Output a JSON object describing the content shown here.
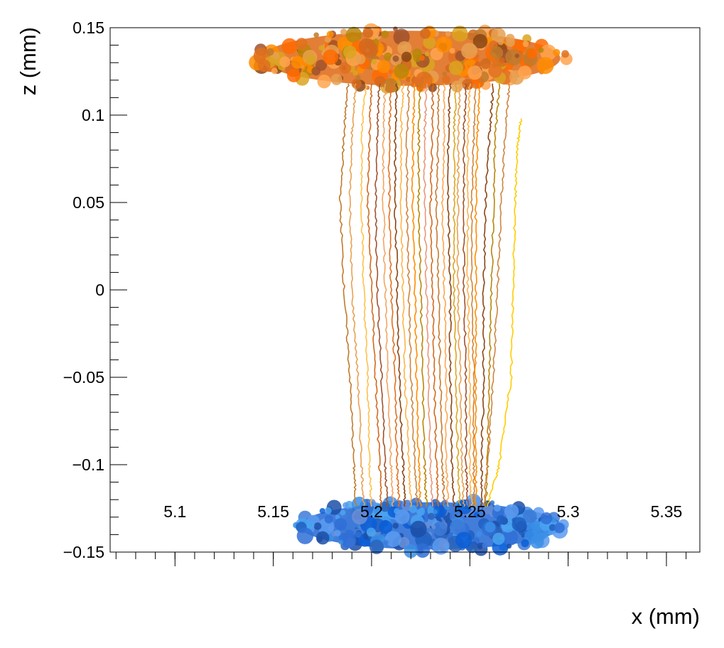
{
  "chart_data": {
    "type": "line",
    "title": "",
    "xlabel": "x (mm)",
    "ylabel": "z (mm)",
    "xlim": [
      5.067,
      5.367
    ],
    "ylim": [
      -0.15,
      0.15
    ],
    "grid": false,
    "legend": "none",
    "x_ticks": [
      {
        "value": 5.1,
        "label": "5.1"
      },
      {
        "value": 5.15,
        "label": "5.15"
      },
      {
        "value": 5.2,
        "label": "5.2"
      },
      {
        "value": 5.25,
        "label": "5.25"
      },
      {
        "value": 5.3,
        "label": "5.3"
      },
      {
        "value": 5.35,
        "label": "5.35"
      }
    ],
    "y_ticks": [
      {
        "value": 0.15,
        "label": "0.15"
      },
      {
        "value": 0.1,
        "label": "0.1"
      },
      {
        "value": 0.05,
        "label": "0.05"
      },
      {
        "value": 0,
        "label": "0"
      },
      {
        "value": -0.05,
        "label": "−0.05"
      },
      {
        "value": -0.1,
        "label": "−0.1"
      },
      {
        "value": -0.15,
        "label": "−0.15"
      }
    ],
    "series": [
      {
        "kind": "drift",
        "color": "#c07a2c",
        "x": [
          5.188,
          5.186,
          5.184,
          5.186,
          5.189,
          5.191,
          5.192
        ],
        "z": [
          0.118,
          0.09,
          0.05,
          0.0,
          -0.05,
          -0.1,
          -0.124
        ]
      },
      {
        "kind": "drift",
        "color": "#e8a050",
        "x": [
          5.192,
          5.19,
          5.189,
          5.19,
          5.193,
          5.195,
          5.196
        ],
        "z": [
          0.118,
          0.09,
          0.05,
          0.0,
          -0.05,
          -0.1,
          -0.124
        ]
      },
      {
        "kind": "drift",
        "color": "#ffc04a",
        "x": [
          5.197,
          5.195,
          5.195,
          5.196,
          5.198,
          5.199,
          5.2
        ],
        "z": [
          0.118,
          0.09,
          0.05,
          0.0,
          -0.05,
          -0.1,
          -0.124
        ]
      },
      {
        "kind": "drift",
        "color": "#d2691e",
        "x": [
          5.2,
          5.199,
          5.198,
          5.2,
          5.202,
          5.204,
          5.205
        ],
        "z": [
          0.118,
          0.09,
          0.05,
          0.0,
          -0.05,
          -0.1,
          -0.124
        ]
      },
      {
        "kind": "drift",
        "color": "#a0522d",
        "x": [
          5.204,
          5.203,
          5.202,
          5.203,
          5.205,
          5.207,
          5.208
        ],
        "z": [
          0.118,
          0.09,
          0.05,
          0.0,
          -0.05,
          -0.1,
          -0.124
        ]
      },
      {
        "kind": "drift",
        "color": "#f4a460",
        "x": [
          5.207,
          5.206,
          5.206,
          5.207,
          5.208,
          5.21,
          5.211
        ],
        "z": [
          0.118,
          0.09,
          0.05,
          0.0,
          -0.05,
          -0.1,
          -0.124
        ]
      },
      {
        "kind": "drift",
        "color": "#e07020",
        "x": [
          5.21,
          5.209,
          5.209,
          5.21,
          5.212,
          5.213,
          5.214
        ],
        "z": [
          0.118,
          0.09,
          0.05,
          0.0,
          -0.05,
          -0.1,
          -0.124
        ]
      },
      {
        "kind": "drift",
        "color": "#8b4513",
        "x": [
          5.213,
          5.212,
          5.212,
          5.213,
          5.214,
          5.216,
          5.217
        ],
        "z": [
          0.118,
          0.09,
          0.05,
          0.0,
          -0.05,
          -0.1,
          -0.124
        ]
      },
      {
        "kind": "drift",
        "color": "#ffb347",
        "x": [
          5.216,
          5.215,
          5.215,
          5.216,
          5.217,
          5.219,
          5.22
        ],
        "z": [
          0.118,
          0.09,
          0.05,
          0.0,
          -0.05,
          -0.1,
          -0.124
        ]
      },
      {
        "kind": "drift",
        "color": "#cd853f",
        "x": [
          5.219,
          5.218,
          5.218,
          5.219,
          5.22,
          5.222,
          5.223
        ],
        "z": [
          0.118,
          0.09,
          0.05,
          0.0,
          -0.05,
          -0.1,
          -0.124
        ]
      },
      {
        "kind": "drift",
        "color": "#ff8c00",
        "x": [
          5.222,
          5.221,
          5.221,
          5.222,
          5.223,
          5.224,
          5.225
        ],
        "z": [
          0.118,
          0.09,
          0.05,
          0.0,
          -0.05,
          -0.1,
          -0.124
        ]
      },
      {
        "kind": "drift",
        "color": "#b8860b",
        "x": [
          5.225,
          5.224,
          5.224,
          5.225,
          5.226,
          5.227,
          5.228
        ],
        "z": [
          0.118,
          0.09,
          0.05,
          0.0,
          -0.05,
          -0.1,
          -0.124
        ]
      },
      {
        "kind": "drift",
        "color": "#e9967a",
        "x": [
          5.228,
          5.227,
          5.227,
          5.228,
          5.229,
          5.23,
          5.231
        ],
        "z": [
          0.118,
          0.09,
          0.05,
          0.0,
          -0.05,
          -0.1,
          -0.124
        ]
      },
      {
        "kind": "drift",
        "color": "#d2691e",
        "x": [
          5.231,
          5.231,
          5.23,
          5.231,
          5.232,
          5.233,
          5.234
        ],
        "z": [
          0.118,
          0.09,
          0.05,
          0.0,
          -0.05,
          -0.1,
          -0.124
        ]
      },
      {
        "kind": "drift",
        "color": "#c67b30",
        "x": [
          5.234,
          5.234,
          5.233,
          5.234,
          5.235,
          5.236,
          5.237
        ],
        "z": [
          0.118,
          0.09,
          0.05,
          0.0,
          -0.05,
          -0.1,
          -0.124
        ]
      },
      {
        "kind": "drift",
        "color": "#ffa54f",
        "x": [
          5.237,
          5.237,
          5.236,
          5.237,
          5.238,
          5.238,
          5.239
        ],
        "z": [
          0.118,
          0.09,
          0.05,
          0.0,
          -0.05,
          -0.1,
          -0.124
        ]
      },
      {
        "kind": "drift",
        "color": "#8b4513",
        "x": [
          5.24,
          5.239,
          5.239,
          5.24,
          5.24,
          5.241,
          5.242
        ],
        "z": [
          0.118,
          0.09,
          0.05,
          0.0,
          -0.05,
          -0.1,
          -0.124
        ]
      },
      {
        "kind": "drift",
        "color": "#daa520",
        "x": [
          5.243,
          5.242,
          5.242,
          5.242,
          5.243,
          5.244,
          5.245
        ],
        "z": [
          0.118,
          0.09,
          0.05,
          0.0,
          -0.05,
          -0.1,
          -0.124
        ]
      },
      {
        "kind": "drift",
        "color": "#e8a050",
        "x": [
          5.245,
          5.244,
          5.244,
          5.244,
          5.245,
          5.246,
          5.247
        ],
        "z": [
          0.118,
          0.09,
          0.05,
          0.0,
          -0.05,
          -0.1,
          -0.124
        ]
      },
      {
        "kind": "drift",
        "color": "#a0522d",
        "x": [
          5.248,
          5.247,
          5.247,
          5.247,
          5.248,
          5.248,
          5.249
        ],
        "z": [
          0.118,
          0.09,
          0.05,
          0.0,
          -0.05,
          -0.1,
          -0.124
        ]
      },
      {
        "kind": "drift",
        "color": "#ffb347",
        "x": [
          5.25,
          5.249,
          5.249,
          5.249,
          5.25,
          5.25,
          5.251
        ],
        "z": [
          0.118,
          0.09,
          0.05,
          0.0,
          -0.05,
          -0.1,
          -0.124
        ]
      },
      {
        "kind": "drift",
        "color": "#cd853f",
        "x": [
          5.253,
          5.252,
          5.251,
          5.251,
          5.252,
          5.252,
          5.252
        ],
        "z": [
          0.118,
          0.09,
          0.05,
          0.0,
          -0.05,
          -0.1,
          -0.124
        ]
      },
      {
        "kind": "drift",
        "color": "#ff8c00",
        "x": [
          5.255,
          5.254,
          5.253,
          5.253,
          5.253,
          5.253,
          5.253
        ],
        "z": [
          0.118,
          0.09,
          0.05,
          0.0,
          -0.05,
          -0.1,
          -0.124
        ]
      },
      {
        "kind": "drift",
        "color": "#8b4513",
        "x": [
          5.262,
          5.26,
          5.258,
          5.257,
          5.257,
          5.256,
          5.256
        ],
        "z": [
          0.118,
          0.09,
          0.05,
          0.0,
          -0.05,
          -0.1,
          -0.124
        ]
      },
      {
        "kind": "drift",
        "color": "#b8860b",
        "x": [
          5.265,
          5.263,
          5.262,
          5.261,
          5.26,
          5.259,
          5.258
        ],
        "z": [
          0.118,
          0.09,
          0.05,
          0.0,
          -0.05,
          -0.1,
          -0.124
        ]
      },
      {
        "kind": "drift",
        "color": "#ffcc00",
        "x": [
          5.276,
          5.274,
          5.273,
          5.272,
          5.271,
          5.265,
          5.259
        ],
        "z": [
          0.098,
          0.08,
          0.05,
          0.0,
          -0.05,
          -0.1,
          -0.124
        ]
      },
      {
        "kind": "drift",
        "color": "#cd853f",
        "x": [
          5.27,
          5.268,
          5.266,
          5.264,
          5.262,
          5.259,
          5.257
        ],
        "z": [
          0.118,
          0.09,
          0.05,
          0.0,
          -0.05,
          -0.1,
          -0.124
        ]
      }
    ],
    "clusters": [
      {
        "kind": "top",
        "color": "#e07020",
        "x": [
          5.14,
          5.3
        ],
        "z": [
          0.115,
          0.15
        ]
      },
      {
        "kind": "bottom",
        "color": "#2f6fd6",
        "x": [
          5.16,
          5.3
        ],
        "z": [
          -0.15,
          -0.12
        ]
      }
    ]
  }
}
